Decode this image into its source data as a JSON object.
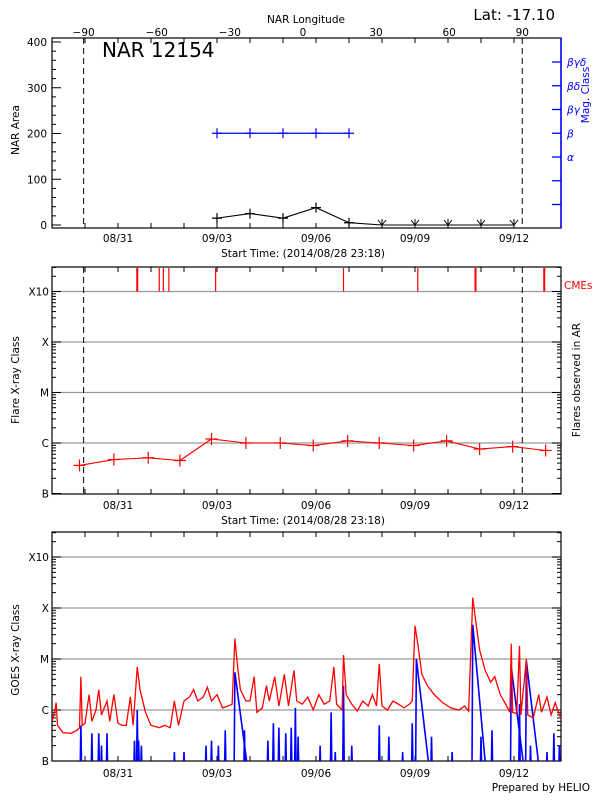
{
  "header": {
    "lat_label": "Lat: -17.10",
    "credit": "Prepared by HELIO"
  },
  "colors": {
    "area": "#000000",
    "mag_class": "#0000ff",
    "flare": "#ff0000",
    "cme": "#ff0000",
    "goes_long": "#ff0000",
    "goes_short": "#0000ff",
    "grid": "#999999"
  },
  "chart_data": [
    {
      "type": "line",
      "title": "NAR 12154",
      "top_axis_label": "NAR Longitude",
      "top_ticks": [
        -90,
        -60,
        -30,
        0,
        30,
        60,
        90
      ],
      "limb_longitudes": [
        -90,
        90
      ],
      "limb_times": [
        "2014-08-29T23:00",
        "2014-09-12T06:00"
      ],
      "xlabel": "Start Time: (2014/08/28 23:18)",
      "xticks": [
        "08/31",
        "09/03",
        "09/06",
        "09/09",
        "09/12"
      ],
      "ylabel": "NAR Area",
      "yticks": [
        0,
        100,
        200,
        300,
        400
      ],
      "ylim": [
        0,
        400
      ],
      "y2label": "Mag. Class",
      "y2ticks": [
        "α",
        "β",
        "βγ",
        "βδ",
        "βγδ"
      ],
      "area": {
        "x": [
          "2014-09-03",
          "2014-09-04",
          "2014-09-05",
          "2014-09-06",
          "2014-09-07",
          "2014-09-08",
          "2014-09-09",
          "2014-09-10",
          "2014-09-11",
          "2014-09-12"
        ],
        "values": [
          15,
          25,
          15,
          38,
          5,
          0,
          0,
          0,
          0,
          0
        ]
      },
      "mag_class": {
        "x": [
          "2014-09-03",
          "2014-09-04",
          "2014-09-05",
          "2014-09-06",
          "2014-09-07"
        ],
        "values": [
          "β",
          "β",
          "β",
          "β",
          "β"
        ]
      }
    },
    {
      "type": "line",
      "xlabel": "Start Time: (2014/08/28 23:18)",
      "xticks": [
        "08/31",
        "09/03",
        "09/06",
        "09/09",
        "09/12"
      ],
      "ylabel": "Flare X-ray Class",
      "y2label": "Flares observed in AR",
      "yticks": [
        "B",
        "C",
        "M",
        "X",
        "X10"
      ],
      "yscale": "log",
      "grid": true,
      "cme_label": "CMEs",
      "cme_times": [
        "2014-08-31T14:00",
        "2014-09-01T06:00",
        "2014-09-01T09:00",
        "2014-09-01T13:00",
        "2014-09-02T23:00",
        "2014-09-06T20:00",
        "2014-09-09T02:00",
        "2014-09-10T20:00",
        "2014-09-12T22:00"
      ],
      "flares": {
        "x": [
          "2014-08-29T20:00",
          "2014-08-30T21:00",
          "2014-08-31T22:00",
          "2014-09-01T21:00",
          "2014-09-02T20:00",
          "2014-09-03T21:00",
          "2014-09-04T22:00",
          "2014-09-05T22:00",
          "2014-09-06T23:00",
          "2014-09-07T22:00",
          "2014-09-08T23:00",
          "2014-09-09T23:00",
          "2014-09-10T23:00",
          "2014-09-11T23:00",
          "2014-09-12T23:00"
        ],
        "values": [
          "B3.6",
          "B4.7",
          "B5.1",
          "B4.5",
          "C1.2",
          "C1.0",
          "C1.0",
          "B8.9",
          "C1.1",
          "C1.0",
          "B8.9",
          "C1.1",
          "B7.6",
          "B8.5",
          "B7.1"
        ]
      },
      "limb_times": [
        "2014-08-29T23:00",
        "2014-09-12T06:00"
      ]
    },
    {
      "type": "line",
      "xticks": [
        "08/31",
        "09/03",
        "09/06",
        "09/09",
        "09/12"
      ],
      "ylabel": "GOES X-ray Class",
      "yticks": [
        "B",
        "C",
        "M",
        "X",
        "X10"
      ],
      "yscale": "log",
      "grid": true,
      "goes_long": [
        [
          "2014-08-29T00:00",
          "B6.0"
        ],
        [
          "2014-08-29T02:00",
          "B9.0"
        ],
        [
          "2014-08-29T03:00",
          "C1.4"
        ],
        [
          "2014-08-29T04:00",
          "B5.0"
        ],
        [
          "2014-08-29T08:00",
          "B3.6"
        ],
        [
          "2014-08-29T14:00",
          "B3.5"
        ],
        [
          "2014-08-29T18:00",
          "B4.0"
        ],
        [
          "2014-08-29T20:00",
          "B4.5"
        ],
        [
          "2014-08-29T21:00",
          "C4.5"
        ],
        [
          "2014-08-29T22:00",
          "B5.0"
        ],
        [
          "2014-08-30T00:00",
          "B5.5"
        ],
        [
          "2014-08-30T03:00",
          "C2.0"
        ],
        [
          "2014-08-30T05:00",
          "B6.0"
        ],
        [
          "2014-08-30T08:00",
          "C1.0"
        ],
        [
          "2014-08-30T10:00",
          "C2.5"
        ],
        [
          "2014-08-30T12:00",
          "B8.0"
        ],
        [
          "2014-08-30T16:00",
          "C1.5"
        ],
        [
          "2014-08-30T18:00",
          "B6.0"
        ],
        [
          "2014-08-30T21:00",
          "C2.0"
        ],
        [
          "2014-08-31T00:00",
          "B5.5"
        ],
        [
          "2014-08-31T03:00",
          "B5.0"
        ],
        [
          "2014-08-31T06:00",
          "B5.0"
        ],
        [
          "2014-08-31T09:00",
          "C1.8"
        ],
        [
          "2014-08-31T11:00",
          "B5.0"
        ],
        [
          "2014-08-31T14:00",
          "C7.0"
        ],
        [
          "2014-08-31T16:00",
          "C2.5"
        ],
        [
          "2014-08-31T20:00",
          "B9.0"
        ],
        [
          "2014-09-01T00:00",
          "B5.0"
        ],
        [
          "2014-09-01T06:00",
          "B4.5"
        ],
        [
          "2014-09-01T10:00",
          "B5.0"
        ],
        [
          "2014-09-01T14:00",
          "B4.5"
        ],
        [
          "2014-09-01T17:00",
          "C1.5"
        ],
        [
          "2014-09-01T20:00",
          "B5.0"
        ],
        [
          "2014-09-02T00:00",
          "C1.5"
        ],
        [
          "2014-09-02T04:00",
          "C1.8"
        ],
        [
          "2014-09-02T07:00",
          "C2.5"
        ],
        [
          "2014-09-02T10:00",
          "C1.5"
        ],
        [
          "2014-09-02T14:00",
          "C1.8"
        ],
        [
          "2014-09-02T17:00",
          "C2.8"
        ],
        [
          "2014-09-02T20:00",
          "C1.5"
        ],
        [
          "2014-09-03T00:00",
          "C2.0"
        ],
        [
          "2014-09-03T04:00",
          "C1.1"
        ],
        [
          "2014-09-03T08:00",
          "C1.2"
        ],
        [
          "2014-09-03T11:00",
          "C1.3"
        ],
        [
          "2014-09-03T13:00",
          "M2.5"
        ],
        [
          "2014-09-03T15:00",
          "C7.0"
        ],
        [
          "2014-09-03T17:00",
          "C2.5"
        ],
        [
          "2014-09-03T21:00",
          "C1.5"
        ],
        [
          "2014-09-04T00:00",
          "C1.5"
        ],
        [
          "2014-09-04T03:00",
          "C4.5"
        ],
        [
          "2014-09-04T05:00",
          "B9.0"
        ],
        [
          "2014-09-04T09:00",
          "C1.1"
        ],
        [
          "2014-09-04T12:00",
          "C3.0"
        ],
        [
          "2014-09-04T14:00",
          "C1.5"
        ],
        [
          "2014-09-04T18:00",
          "C4.5"
        ],
        [
          "2014-09-04T21:00",
          "C1.2"
        ],
        [
          "2014-09-05T01:00",
          "C5.0"
        ],
        [
          "2014-09-05T04:00",
          "C1.2"
        ],
        [
          "2014-09-05T08:00",
          "C6.0"
        ],
        [
          "2014-09-05T10:00",
          "C1.5"
        ],
        [
          "2014-09-05T14:00",
          "C1.3"
        ],
        [
          "2014-09-05T18:00",
          "C1.8"
        ],
        [
          "2014-09-05T22:00",
          "C1.0"
        ],
        [
          "2014-09-06T02:00",
          "C2.0"
        ],
        [
          "2014-09-06T06:00",
          "C1.3"
        ],
        [
          "2014-09-06T10:00",
          "C1.5"
        ],
        [
          "2014-09-06T13:00",
          "C7.0"
        ],
        [
          "2014-09-06T15:00",
          "C1.3"
        ],
        [
          "2014-09-06T19:00",
          "C1.0"
        ],
        [
          "2014-09-06T20:00",
          "M1.2"
        ],
        [
          "2014-09-06T22:00",
          "C2.0"
        ],
        [
          "2014-09-07T02:00",
          "C1.3"
        ],
        [
          "2014-09-07T06:00",
          "B9.5"
        ],
        [
          "2014-09-07T10:00",
          "C1.5"
        ],
        [
          "2014-09-07T14:00",
          "C1.2"
        ],
        [
          "2014-09-07T17:00",
          "C2.0"
        ],
        [
          "2014-09-07T20:00",
          "C1.2"
        ],
        [
          "2014-09-07T22:00",
          "C8.0"
        ],
        [
          "2014-09-08T00:00",
          "C1.2"
        ],
        [
          "2014-09-08T04:00",
          "C1.0"
        ],
        [
          "2014-09-08T08:00",
          "C1.5"
        ],
        [
          "2014-09-08T12:00",
          "C1.3"
        ],
        [
          "2014-09-08T16:00",
          "C1.1"
        ],
        [
          "2014-09-08T20:00",
          "C1.3"
        ],
        [
          "2014-09-08T22:00",
          "C1.5"
        ],
        [
          "2014-09-09T00:00",
          "M4.5"
        ],
        [
          "2014-09-09T02:00",
          "M2.0"
        ],
        [
          "2014-09-09T05:00",
          "C5.0"
        ],
        [
          "2014-09-09T09:00",
          "C3.0"
        ],
        [
          "2014-09-09T14:00",
          "C2.0"
        ],
        [
          "2014-09-09T20:00",
          "C1.4"
        ],
        [
          "2014-09-10T02:00",
          "C1.1"
        ],
        [
          "2014-09-10T08:00",
          "C1.0"
        ],
        [
          "2014-09-10T12:00",
          "C1.2"
        ],
        [
          "2014-09-10T15:00",
          "B9.5"
        ],
        [
          "2014-09-10T18:00",
          "X1.6"
        ],
        [
          "2014-09-10T20:00",
          "M6.0"
        ],
        [
          "2014-09-10T23:00",
          "M1.5"
        ],
        [
          "2014-09-11T03:00",
          "C6.0"
        ],
        [
          "2014-09-11T07:00",
          "C3.5"
        ],
        [
          "2014-09-11T10:00",
          "C4.5"
        ],
        [
          "2014-09-11T14:00",
          "C2.0"
        ],
        [
          "2014-09-11T18:00",
          "C1.3"
        ],
        [
          "2014-09-11T21:00",
          "B9.0"
        ],
        [
          "2014-09-11T22:00",
          "M2.0"
        ],
        [
          "2014-09-11T23:00",
          "B9.0"
        ],
        [
          "2014-09-12T02:00",
          "B8.5"
        ],
        [
          "2014-09-12T04:00",
          "M1.8"
        ],
        [
          "2014-09-12T05:00",
          "B8.0"
        ],
        [
          "2014-09-12T09:00",
          "M1.0"
        ],
        [
          "2014-09-12T10:00",
          "B8.0"
        ],
        [
          "2014-09-12T14:00",
          "B7.0"
        ],
        [
          "2014-09-12T18:00",
          "C2.0"
        ],
        [
          "2014-09-12T20:00",
          "B9.0"
        ],
        [
          "2014-09-13T00:00",
          "C1.8"
        ],
        [
          "2014-09-13T03:00",
          "B8.0"
        ],
        [
          "2014-09-13T06:00",
          "C1.4"
        ],
        [
          "2014-09-13T09:00",
          "B8.0"
        ],
        [
          "2014-09-13T12:00",
          "B6.0"
        ]
      ],
      "goes_short": [
        [
          "2014-08-29T21:00",
          "B5.0"
        ],
        [
          "2014-08-30T05:00",
          "B3.5"
        ],
        [
          "2014-08-30T10:00",
          "B3.5"
        ],
        [
          "2014-08-30T12:00",
          "B2.0"
        ],
        [
          "2014-08-30T16:00",
          "B3.5"
        ],
        [
          "2014-08-31T12:00",
          "B2.5"
        ],
        [
          "2014-08-31T14:00",
          "C1.0"
        ],
        [
          "2014-08-31T15:00",
          "B2.5"
        ],
        [
          "2014-08-31T17:00",
          "B2.0"
        ],
        [
          "2014-09-01T17:00",
          "B1.5"
        ],
        [
          "2014-09-02T00:00",
          "B1.5"
        ],
        [
          "2014-09-02T16:00",
          "B2.0"
        ],
        [
          "2014-09-02T20:00",
          "B2.5"
        ],
        [
          "2014-09-03T01:00",
          "B2.0"
        ],
        [
          "2014-09-03T06:00",
          "B4.0"
        ],
        [
          "2014-09-03T13:00",
          "C5.5"
        ],
        [
          "2014-09-03T20:00",
          "B4.0"
        ],
        [
          "2014-09-04T13:00",
          "B2.5"
        ],
        [
          "2014-09-04T17:00",
          "B5.5"
        ],
        [
          "2014-09-04T21:00",
          "B4.5"
        ],
        [
          "2014-09-05T02:00",
          "B3.5"
        ],
        [
          "2014-09-05T06:00",
          "B4.5"
        ],
        [
          "2014-09-05T09:00",
          "C1.1"
        ],
        [
          "2014-09-05T11:00",
          "B3.0"
        ],
        [
          "2014-09-06T03:00",
          "B2.0"
        ],
        [
          "2014-09-06T11:00",
          "B9.0"
        ],
        [
          "2014-09-06T14:00",
          "B1.5"
        ],
        [
          "2014-09-06T20:00",
          "C3.0"
        ],
        [
          "2014-09-07T02:00",
          "B2.0"
        ],
        [
          "2014-09-07T22:00",
          "B5.0"
        ],
        [
          "2014-09-08T05:00",
          "B3.0"
        ],
        [
          "2014-09-08T15:00",
          "B1.5"
        ],
        [
          "2014-09-08T22:00",
          "B5.5"
        ],
        [
          "2014-09-09T01:00",
          "M1.0"
        ],
        [
          "2014-09-09T12:00",
          "B3.0"
        ],
        [
          "2014-09-10T03:00",
          "B1.5"
        ],
        [
          "2014-09-10T18:00",
          "M4.7"
        ],
        [
          "2014-09-11T00:00",
          "B3.0"
        ],
        [
          "2014-09-11T08:00",
          "B4.0"
        ],
        [
          "2014-09-11T22:00",
          "C7.0"
        ],
        [
          "2014-09-12T04:00",
          "C1.3"
        ],
        [
          "2014-09-12T09:00",
          "C9.0"
        ],
        [
          "2014-09-12T12:00",
          "B2.0"
        ],
        [
          "2014-09-13T00:00",
          "B1.5"
        ],
        [
          "2014-09-13T05:00",
          "B3.5"
        ],
        [
          "2014-09-13T09:00",
          "B2.0"
        ]
      ]
    }
  ]
}
